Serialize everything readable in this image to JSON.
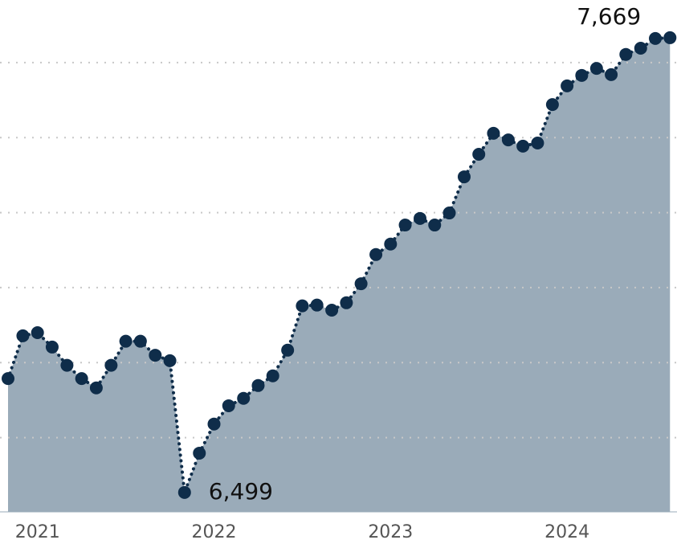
{
  "chart_data": {
    "type": "area",
    "x": [
      2020.833,
      2020.917,
      2021.0,
      2021.083,
      2021.167,
      2021.25,
      2021.333,
      2021.417,
      2021.5,
      2021.583,
      2021.667,
      2021.75,
      2021.833,
      2021.917,
      2022.0,
      2022.083,
      2022.167,
      2022.25,
      2022.333,
      2022.417,
      2022.5,
      2022.583,
      2022.667,
      2022.75,
      2022.833,
      2022.917,
      2023.0,
      2023.083,
      2023.167,
      2023.25,
      2023.333,
      2023.417,
      2023.5,
      2023.583,
      2023.667,
      2023.75,
      2023.833,
      2023.917,
      2024.0,
      2024.083,
      2024.167,
      2024.25,
      2024.333,
      2024.417,
      2024.5,
      2024.583
    ],
    "series": [
      {
        "color": "#0f2d4a",
        "fill": "#9aabb9",
        "values": [
          6792,
          6902,
          6910,
          6873,
          6826,
          6792,
          6768,
          6826,
          6888,
          6888,
          6852,
          6838,
          6499,
          6600,
          6675,
          6722,
          6741,
          6774,
          6799,
          6865,
          6979,
          6981,
          6968,
          6987,
          7036,
          7111,
          7138,
          7187,
          7204,
          7187,
          7218,
          7311,
          7369,
          7423,
          7406,
          7390,
          7398,
          7497,
          7545,
          7572,
          7590,
          7574,
          7626,
          7642,
          7667,
          7669
        ],
        "value_labels": [
          null,
          null,
          null,
          null,
          null,
          null,
          null,
          null,
          null,
          null,
          null,
          null,
          "6,499",
          null,
          null,
          null,
          null,
          null,
          null,
          null,
          null,
          null,
          null,
          null,
          null,
          null,
          null,
          null,
          null,
          null,
          null,
          null,
          null,
          null,
          null,
          null,
          null,
          null,
          null,
          null,
          null,
          null,
          null,
          null,
          null,
          "7,669"
        ]
      }
    ],
    "xlim": [
      2020.833,
      2024.6
    ],
    "xticks": [
      2021,
      2022,
      2023,
      2024
    ],
    "ylim": [
      6449,
      7766
    ],
    "yticks": [
      6640,
      6833,
      7026,
      7219,
      7412,
      7605
    ],
    "grid": true
  }
}
